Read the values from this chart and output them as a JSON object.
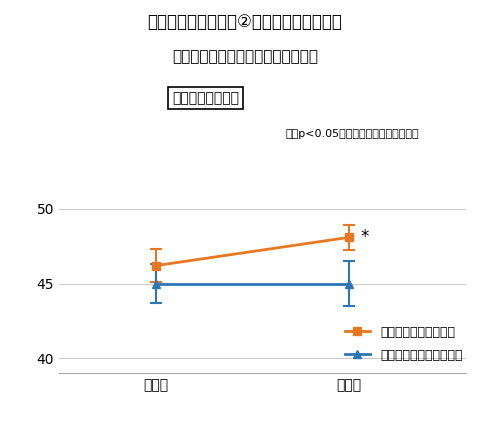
{
  "title_line1": "ナトリードの機能性②【視覚的な記憶力】",
  "title_line1_plain": "ナトリードの機能性②",
  "title_line1_bold": "【視覚的な記憶力】",
  "title_line2": "見たものや出来事を覚え思い出す力",
  "box_label": "視覚記憶力スコア",
  "annotation": "＊：p<0.05（対ナトリード非摂取群）",
  "x_labels": [
    "摂取前",
    "摂取後"
  ],
  "orange_y": [
    46.2,
    48.1
  ],
  "orange_yerr": [
    1.1,
    0.85
  ],
  "blue_y": [
    45.0,
    45.0
  ],
  "blue_yerr": [
    1.3,
    1.5
  ],
  "orange_color": "#E87722",
  "blue_color": "#2E75B6",
  "legend_orange": "「ナトリード」摂取群",
  "legend_blue": "「ナトリード」非摂取群",
  "ylim": [
    39.0,
    51.5
  ],
  "yticks": [
    40,
    45,
    50
  ],
  "star_label": "*",
  "bg_color": "#ffffff"
}
